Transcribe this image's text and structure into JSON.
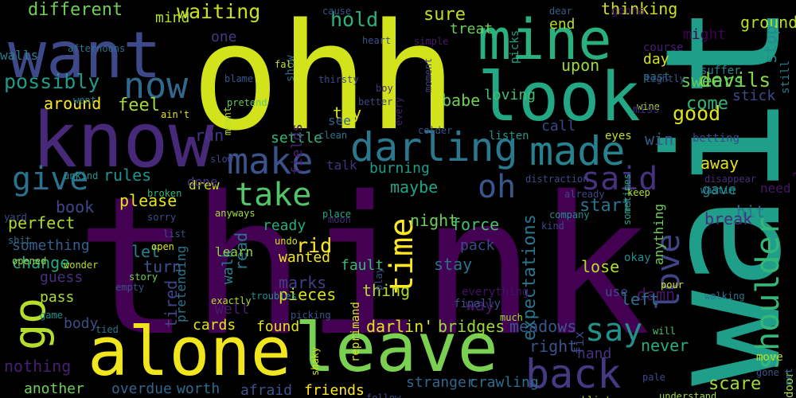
{
  "words": [
    {
      "text": "think",
      "color": "#440154"
    },
    {
      "text": "wait",
      "color": "#1f9e89"
    },
    {
      "text": "ohh",
      "color": "#d2e21b"
    },
    {
      "text": "know",
      "color": "#482878"
    },
    {
      "text": "alone",
      "color": "#f1e51d"
    },
    {
      "text": "leave",
      "color": "#7ad151"
    },
    {
      "text": "look",
      "color": "#22a884"
    },
    {
      "text": "want",
      "color": "#3e4989"
    },
    {
      "text": "mine",
      "color": "#2ab07f"
    },
    {
      "text": "darling",
      "color": "#2a788e"
    },
    {
      "text": "made",
      "color": "#26828e"
    },
    {
      "text": "go",
      "color": "#b5de2b"
    },
    {
      "text": "back",
      "color": "#443983"
    },
    {
      "text": "love",
      "color": "#414487"
    },
    {
      "text": "shoulder",
      "color": "#35b779"
    },
    {
      "text": "say",
      "color": "#21918c"
    },
    {
      "text": "make",
      "color": "#3b528b"
    },
    {
      "text": "now",
      "color": "#31688e"
    },
    {
      "text": "time",
      "color": "#fde725"
    },
    {
      "text": "said",
      "color": "#46327e"
    },
    {
      "text": "take",
      "color": "#52c569"
    },
    {
      "text": "give",
      "color": "#2c728e"
    },
    {
      "text": "oh",
      "color": "#38588c"
    },
    {
      "text": "possibly",
      "color": "#1e9b8a"
    },
    {
      "text": "waiting",
      "color": "#c8e020"
    },
    {
      "text": "different",
      "color": "#6ece58"
    },
    {
      "text": "around",
      "color": "#fde725"
    },
    {
      "text": "feel",
      "color": "#a2da37"
    },
    {
      "text": "good",
      "color": "#dfe318"
    },
    {
      "text": "devils",
      "color": "#86d549"
    },
    {
      "text": "swears",
      "color": "#5ec962"
    },
    {
      "text": "hold",
      "color": "#2db27d"
    },
    {
      "text": "sure",
      "color": "#c2df23"
    },
    {
      "text": "come",
      "color": "#2fb47c"
    },
    {
      "text": "might",
      "color": "#440154"
    },
    {
      "text": "thinking",
      "color": "#d0e11c"
    },
    {
      "text": "stick",
      "color": "#3e4a89"
    },
    {
      "text": "maybe",
      "color": "#20a386"
    },
    {
      "text": "away",
      "color": "#dde318"
    },
    {
      "text": "gave",
      "color": "#23898e"
    },
    {
      "text": "start",
      "color": "#2c718e"
    },
    {
      "text": "please",
      "color": "#e7e419"
    },
    {
      "text": "rules",
      "color": "#1f958b"
    },
    {
      "text": "book",
      "color": "#3f4788"
    },
    {
      "text": "perfect",
      "color": "#addc30"
    },
    {
      "text": "something",
      "color": "#355f8d"
    },
    {
      "text": "change",
      "color": "#25ab82"
    },
    {
      "text": "guess",
      "color": "#4a2f7d"
    },
    {
      "text": "pass",
      "color": "#addc30"
    },
    {
      "text": "body",
      "color": "#3d4e8a"
    },
    {
      "text": "nothing",
      "color": "#481f70"
    },
    {
      "text": "rid",
      "color": "#fde725"
    },
    {
      "text": "let",
      "color": "#26828e"
    },
    {
      "text": "run",
      "color": "#453581"
    },
    {
      "text": "settle",
      "color": "#35b779"
    },
    {
      "text": "burning",
      "color": "#1e9c89"
    },
    {
      "text": "talk",
      "color": "#46337f"
    },
    {
      "text": "try",
      "color": "#d8e219"
    },
    {
      "text": "fault",
      "color": "#38b977"
    },
    {
      "text": "babe",
      "color": "#6ece58"
    },
    {
      "text": "loving",
      "color": "#40bd72"
    },
    {
      "text": "upon",
      "color": "#9dd93b"
    },
    {
      "text": "stay",
      "color": "#2e6f8e"
    },
    {
      "text": "pack",
      "color": "#3f4889"
    },
    {
      "text": "lose",
      "color": "#b5de2b"
    },
    {
      "text": "thing",
      "color": "#addc30"
    },
    {
      "text": "way",
      "color": "#48186a"
    },
    {
      "text": "darlin'",
      "color": "#e2e418"
    },
    {
      "text": "bridges",
      "color": "#9bd93c"
    },
    {
      "text": "meadows",
      "color": "#39558c"
    },
    {
      "text": "found",
      "color": "#e2e418"
    },
    {
      "text": "marks",
      "color": "#433e85"
    },
    {
      "text": "pieces",
      "color": "#d8e219"
    },
    {
      "text": "wanted",
      "color": "#f1e51d"
    },
    {
      "text": "turn",
      "color": "#3b518b"
    },
    {
      "text": "read",
      "color": "#2a768e"
    },
    {
      "text": "walk",
      "color": "#277f8e"
    },
    {
      "text": "well",
      "color": "#481d6f"
    },
    {
      "text": "cards",
      "color": "#e5e419"
    },
    {
      "text": "tired",
      "color": "#404588"
    },
    {
      "text": "pretending",
      "color": "#2b748e"
    },
    {
      "text": "another",
      "color": "#70cf57"
    },
    {
      "text": "overdue",
      "color": "#33638d"
    },
    {
      "text": "worth",
      "color": "#2f6b8e"
    },
    {
      "text": "afraid",
      "color": "#3b528b"
    },
    {
      "text": "friends",
      "color": "#fde725"
    },
    {
      "text": "stranger",
      "color": "#31668e"
    },
    {
      "text": "crawling",
      "color": "#2d708e"
    },
    {
      "text": "right",
      "color": "#3a538b"
    },
    {
      "text": "never",
      "color": "#29af7f"
    },
    {
      "text": "hand",
      "color": "#46327e"
    },
    {
      "text": "scare",
      "color": "#a2da37"
    },
    {
      "text": "damn",
      "color": "#481769"
    },
    {
      "text": "left",
      "color": "#2c728e"
    },
    {
      "text": "hit",
      "color": "#2a768e"
    },
    {
      "text": "break",
      "color": "#472d7b"
    },
    {
      "text": "win",
      "color": "#38598c"
    },
    {
      "text": "call",
      "color": "#3f4788"
    },
    {
      "text": "treat",
      "color": "#6ccd5a"
    },
    {
      "text": "end",
      "color": "#b8de29"
    },
    {
      "text": "day",
      "color": "#d5e21a"
    },
    {
      "text": "ground",
      "color": "#b5de2b"
    },
    {
      "text": "stop",
      "color": "#238a8d"
    },
    {
      "text": "always",
      "color": "#440154"
    },
    {
      "text": "need",
      "color": "#481769"
    },
    {
      "text": "one",
      "color": "#443983"
    },
    {
      "text": "drew",
      "color": "#d8e219"
    },
    {
      "text": "learn",
      "color": "#8ed645"
    },
    {
      "text": "see",
      "color": "#33638d"
    },
    {
      "text": "mind",
      "color": "#b0dd2f"
    },
    {
      "text": "expectations",
      "color": "#2b748e"
    },
    {
      "text": "force",
      "color": "#48c16e"
    },
    {
      "text": "night",
      "color": "#6ece58"
    },
    {
      "text": "ready",
      "color": "#25ab82"
    },
    {
      "text": "done",
      "color": "#46337f"
    },
    {
      "text": "fields",
      "color": "#482071"
    },
    {
      "text": "anything",
      "color": "#6ece58"
    },
    {
      "text": "okay",
      "color": "#23898e"
    },
    {
      "text": "use",
      "color": "#3f4889"
    },
    {
      "text": "move",
      "color": "#b5de2b"
    },
    {
      "text": "gonna",
      "color": "#481b6d"
    },
    {
      "text": "door",
      "color": "#addc30"
    },
    {
      "text": "still",
      "color": "#2a788e"
    },
    {
      "text": "walls",
      "color": "#287c8e"
    },
    {
      "text": "afternoons",
      "color": "#2c728e"
    },
    {
      "text": "went",
      "color": "#287d8e"
    },
    {
      "text": "cause",
      "color": "#3d4e8a"
    },
    {
      "text": "dear",
      "color": "#355e8d"
    },
    {
      "text": "course",
      "color": "#481f70"
    },
    {
      "text": "past",
      "color": "#2c728e"
    },
    {
      "text": "suffer",
      "color": "#25848e"
    },
    {
      "text": "heart",
      "color": "#3b528b"
    },
    {
      "text": "simple",
      "color": "#481a6c"
    },
    {
      "text": "show",
      "color": "#31688e"
    },
    {
      "text": "fall",
      "color": "#c0df25"
    },
    {
      "text": "blame",
      "color": "#39568c"
    },
    {
      "text": "pretend",
      "color": "#5ec962"
    },
    {
      "text": "thirsty",
      "color": "#3e4c8a"
    },
    {
      "text": "boy",
      "color": "#472f7d"
    },
    {
      "text": "better",
      "color": "#414487"
    },
    {
      "text": "moment",
      "color": "#423f85"
    },
    {
      "text": "picks",
      "color": "#20a486"
    },
    {
      "text": "tightly",
      "color": "#39568c"
    },
    {
      "text": "wine",
      "color": "#a2da37"
    },
    {
      "text": "miss",
      "color": "#482878"
    },
    {
      "text": "eyes",
      "color": "#c2df23"
    },
    {
      "text": "betting",
      "color": "#3f4788"
    },
    {
      "text": "ain't",
      "color": "#e5e419"
    },
    {
      "text": "every",
      "color": "#481f70"
    },
    {
      "text": "colder",
      "color": "#3b518b"
    },
    {
      "text": "listen",
      "color": "#1f968b"
    },
    {
      "text": "clean",
      "color": "#2a768e"
    },
    {
      "text": "slow",
      "color": "#424086"
    },
    {
      "text": "distraction",
      "color": "#3e4989"
    },
    {
      "text": "sometimes",
      "color": "#20a386"
    },
    {
      "text": "disappear",
      "color": "#472d7b"
    },
    {
      "text": "wastin",
      "color": "#277e8e"
    },
    {
      "text": "unkind",
      "color": "#1f958b"
    },
    {
      "text": "broken",
      "color": "#2fb47c"
    },
    {
      "text": "already",
      "color": "#404688"
    },
    {
      "text": "keep",
      "color": "#addc30"
    },
    {
      "text": "yard",
      "color": "#3e4c8a"
    },
    {
      "text": "sorry",
      "color": "#3c4f8a"
    },
    {
      "text": "anyways",
      "color": "#a0da39"
    },
    {
      "text": "place",
      "color": "#22a785"
    },
    {
      "text": "moon",
      "color": "#472a7a"
    },
    {
      "text": "company",
      "color": "#21918c"
    },
    {
      "text": "kind",
      "color": "#3f4788"
    },
    {
      "text": "shit",
      "color": "#2e6e8e"
    },
    {
      "text": "list",
      "color": "#3b518b"
    },
    {
      "text": "open",
      "color": "#dde318"
    },
    {
      "text": "undo",
      "color": "#d2e21b"
    },
    {
      "text": "opened",
      "color": "#9bd93c"
    },
    {
      "text": "wonder",
      "color": "#bade28"
    },
    {
      "text": "story",
      "color": "#6ece58"
    },
    {
      "text": "empty",
      "color": "#3b528b"
    },
    {
      "text": "troubles",
      "color": "#21918c"
    },
    {
      "text": "play",
      "color": "#3d4d8a"
    },
    {
      "text": "everything",
      "color": "#471063"
    },
    {
      "text": "pour",
      "color": "#dde318"
    },
    {
      "text": "walking",
      "color": "#2c728e"
    },
    {
      "text": "exactly",
      "color": "#b2dd2d"
    },
    {
      "text": "finally",
      "color": "#3b528b"
    },
    {
      "text": "much",
      "color": "#a5db36"
    },
    {
      "text": "game",
      "color": "#21918c"
    },
    {
      "text": "picking",
      "color": "#39568c"
    },
    {
      "text": "tied",
      "color": "#2a768e"
    },
    {
      "text": "shaky",
      "color": "#d5e21a"
    },
    {
      "text": "reprimand",
      "color": "#dde318"
    },
    {
      "text": "fix",
      "color": "#3f4788"
    },
    {
      "text": "will",
      "color": "#4ac16d"
    },
    {
      "text": "crumblin'",
      "color": "#d2e21b"
    },
    {
      "text": "understand",
      "color": "#a5db36"
    },
    {
      "text": "pale",
      "color": "#3e4989"
    },
    {
      "text": "gone",
      "color": "#3b528b"
    },
    {
      "text": "met",
      "color": "#2c728e"
    },
    {
      "text": "follow",
      "color": "#3e4a89"
    },
    {
      "text": "meant",
      "color": "#b5de2b"
    },
    {
      "text": "losing",
      "color": "#2a778e"
    }
  ]
}
